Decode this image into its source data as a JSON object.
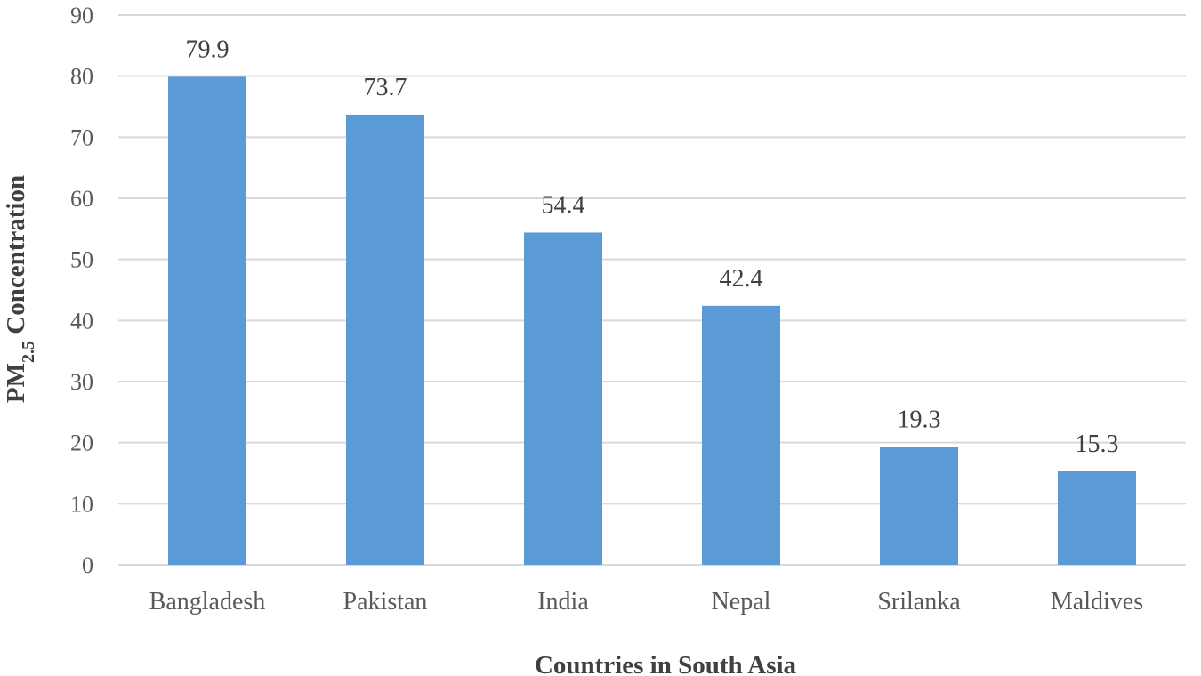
{
  "chart_data": {
    "type": "bar",
    "title": "",
    "categories": [
      "Bangladesh",
      "Pakistan",
      "India",
      "Nepal",
      "Srilanka",
      "Maldives"
    ],
    "values": [
      79.9,
      73.7,
      54.4,
      42.4,
      19.3,
      15.3
    ],
    "data_labels": [
      "79.9",
      "73.7",
      "54.4",
      "42.4",
      "19.3",
      "15.3"
    ],
    "xlabel": "Countries in South Asia",
    "ylabel": {
      "prefix": "PM",
      "subscript": "2.5",
      "suffix": " Concentration"
    },
    "ylim": [
      0,
      90
    ],
    "yticks": [
      0,
      10,
      20,
      30,
      40,
      50,
      60,
      70,
      80,
      90
    ],
    "grid": true,
    "legend": "none",
    "colors": {
      "bar": "#5B9BD5",
      "grid": "#D9D9D9",
      "tick_text": "#595959",
      "label_text": "#404040"
    }
  }
}
